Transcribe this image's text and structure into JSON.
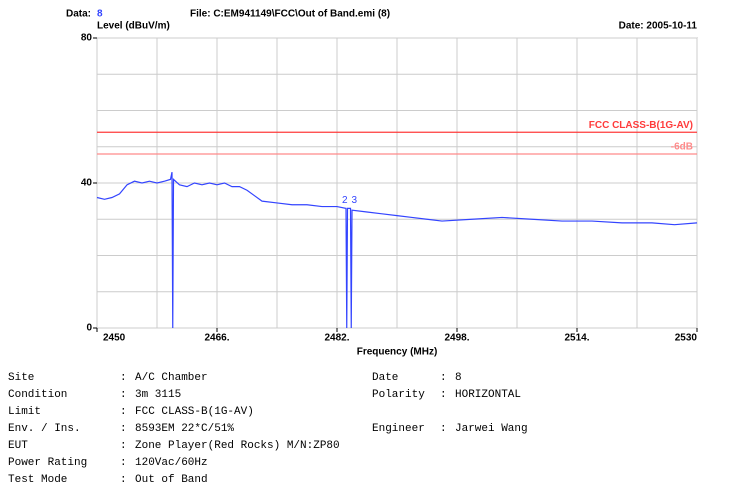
{
  "header": {
    "data_label": "Data:",
    "data_value": "8",
    "file": "File: C:EM941149\\FCC\\Out of Band.emi  (8)",
    "date": "Date: 2005-10-11"
  },
  "chart_data": {
    "type": "line",
    "ylabel": "Level (dBuV/m)",
    "xlabel": "Frequency (MHz)",
    "xlim": [
      2450,
      2530
    ],
    "xticks": [
      2450,
      {
        "value": 2466,
        "label": "2466."
      },
      {
        "value": 2482,
        "label": "2482."
      },
      {
        "value": 2498,
        "label": "2498."
      },
      {
        "value": 2514,
        "label": "2514."
      },
      2530
    ],
    "xgrid": [
      2450,
      2458,
      2466,
      2474,
      2482,
      2490,
      2498,
      2506,
      2514,
      2522,
      2530
    ],
    "ylim": [
      0,
      80
    ],
    "yticks": [
      0,
      40,
      80
    ],
    "ygrid": [
      0,
      10,
      20,
      30,
      40,
      50,
      60,
      70,
      80
    ],
    "grid": true,
    "limits": [
      {
        "name": "FCC CLASS-B(1G-AV)",
        "value": 54,
        "color": "#ff3b3b"
      },
      {
        "name": "-6dB",
        "value": 48,
        "color": "#ff8a8a"
      }
    ],
    "series": [
      {
        "color": "#3344ff",
        "x": [
          2450,
          2451,
          2452,
          2453,
          2454,
          2455,
          2456,
          2457,
          2458,
          2459,
          2459.8,
          2460,
          2460.1,
          2460.2,
          2461,
          2462,
          2463,
          2464,
          2465,
          2466,
          2467,
          2468,
          2469,
          2470,
          2471,
          2472,
          2474,
          2476,
          2478,
          2480,
          2482,
          2483.2,
          2483.3,
          2483.4,
          2483.8,
          2483.9,
          2484,
          2486,
          2488,
          2490,
          2492,
          2494,
          2496,
          2500,
          2504,
          2508,
          2512,
          2516,
          2520,
          2524,
          2527,
          2530
        ],
        "values": [
          36,
          35.5,
          36,
          37,
          39.5,
          40.5,
          40,
          40.5,
          40,
          40.5,
          41,
          43,
          0,
          41,
          39.5,
          39,
          40,
          39.5,
          40,
          39.5,
          40,
          39,
          39,
          38,
          36.5,
          35,
          34.5,
          34,
          34,
          33.5,
          33.5,
          33,
          0,
          33,
          33,
          0,
          32.5,
          32,
          31.5,
          31,
          30.5,
          30,
          29.5,
          30,
          30.5,
          30,
          29.5,
          29.5,
          29,
          29,
          28.5,
          29
        ]
      }
    ],
    "markers": [
      {
        "label": "2",
        "x": 2483.2,
        "y": 33
      },
      {
        "label": "3",
        "x": 2483.8,
        "y": 33
      }
    ]
  },
  "info": [
    {
      "label": "Site",
      "value": "A/C Chamber",
      "label2": "Date",
      "value2": "8"
    },
    {
      "label": "Condition",
      "value": "3m   3115",
      "label2": "Polarity",
      "value2": "HORIZONTAL"
    },
    {
      "label": "Limit",
      "value": "FCC CLASS-B(1G-AV)"
    },
    {
      "label": "Env. / Ins.",
      "value": "8593EM  22*C/51%",
      "label2": "Engineer",
      "value2": "Jarwei Wang"
    },
    {
      "label": "EUT",
      "value": "Zone Player(Red Rocks) M/N:ZP80"
    },
    {
      "label": "Power Rating",
      "value": "120Vac/60Hz"
    },
    {
      "label": "Test Mode",
      "value": "Out of Band"
    }
  ]
}
